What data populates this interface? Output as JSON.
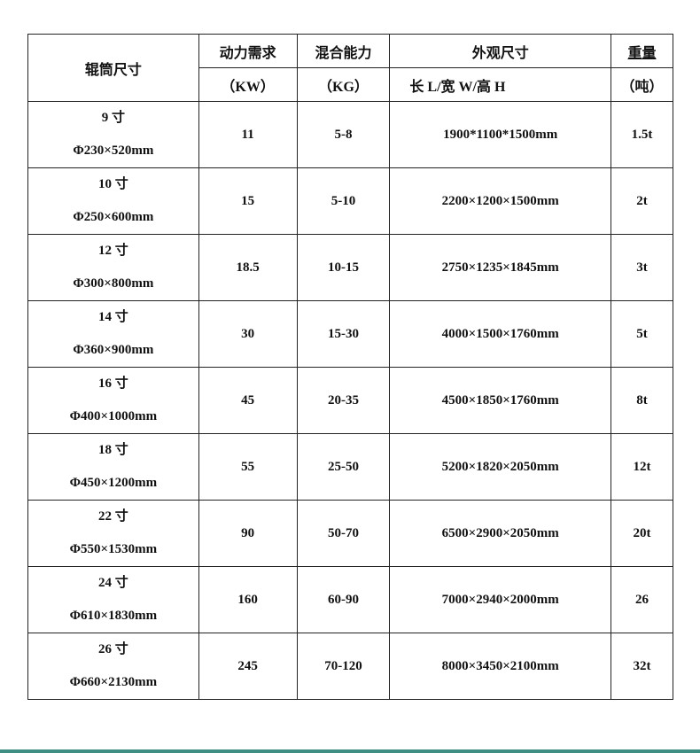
{
  "header": {
    "roller_size": "辊筒尺寸",
    "power": "动力需求",
    "power_unit": "（KW）",
    "capacity": "混合能力",
    "capacity_unit": "（KG）",
    "dimensions": "外观尺寸",
    "dimensions_sub": "长 L/宽 W/高 H",
    "weight": "重量",
    "weight_unit": "（吨）"
  },
  "rows": [
    {
      "size": "9 寸",
      "diameter": "Φ230×520mm",
      "power": "11",
      "capacity": "5-8",
      "dimensions": "1900*1100*1500mm",
      "weight": "1.5t"
    },
    {
      "size": "10 寸",
      "diameter": "Φ250×600mm",
      "power": "15",
      "capacity": "5-10",
      "dimensions": "2200×1200×1500mm",
      "weight": "2t"
    },
    {
      "size": "12 寸",
      "diameter": "Φ300×800mm",
      "power": "18.5",
      "capacity": "10-15",
      "dimensions": "2750×1235×1845mm",
      "weight": "3t"
    },
    {
      "size": "14 寸",
      "diameter": "Φ360×900mm",
      "power": "30",
      "capacity": "15-30",
      "dimensions": "4000×1500×1760mm",
      "weight": "5t"
    },
    {
      "size": "16 寸",
      "diameter": "Φ400×1000mm",
      "power": "45",
      "capacity": "20-35",
      "dimensions": "4500×1850×1760mm",
      "weight": "8t"
    },
    {
      "size": "18 寸",
      "diameter": "Φ450×1200mm",
      "power": "55",
      "capacity": "25-50",
      "dimensions": "5200×1820×2050mm",
      "weight": "12t"
    },
    {
      "size": "22 寸",
      "diameter": "Φ550×1530mm",
      "power": "90",
      "capacity": "50-70",
      "dimensions": "6500×2900×2050mm",
      "weight": "20t"
    },
    {
      "size": "24 寸",
      "diameter": "Φ610×1830mm",
      "power": "160",
      "capacity": "60-90",
      "dimensions": "7000×2940×2000mm",
      "weight": "26"
    },
    {
      "size": "26 寸",
      "diameter": "Φ660×2130mm",
      "power": "245",
      "capacity": "70-120",
      "dimensions": "8000×3450×2100mm",
      "weight": "32t"
    }
  ],
  "colors": {
    "footer_line": "#3f8f82"
  }
}
